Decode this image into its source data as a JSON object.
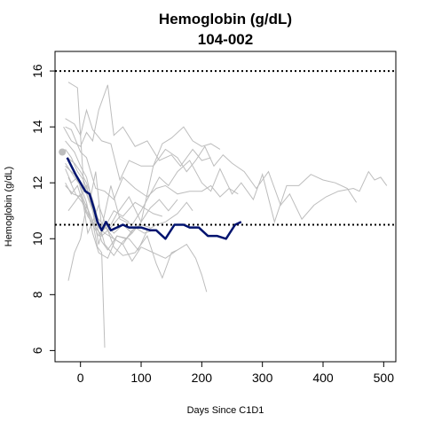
{
  "chart_data": {
    "type": "line",
    "title": "Hemoglobin (g/dL)",
    "subtitle": "104-002",
    "xlabel": "Days Since C1D1",
    "ylabel": "Hemoglobin (g/dL)",
    "xlim": [
      -42,
      520
    ],
    "ylim": [
      5.6,
      16.7
    ],
    "xticks": [
      0,
      100,
      200,
      300,
      400,
      500
    ],
    "yticks": [
      6,
      8,
      10,
      12,
      14,
      16
    ],
    "reference_lines": [
      16,
      10.5
    ],
    "colors": {
      "highlight": "#00136f",
      "background_series": "#bdbdbd",
      "baseline_point": "#bdbdbd",
      "reference": "#000000"
    },
    "baseline_point": {
      "x": -30,
      "y": 13.1
    },
    "highlight_series": {
      "name": "104-002",
      "points": [
        [
          -22,
          12.9
        ],
        [
          -15,
          12.6
        ],
        [
          -8,
          12.3
        ],
        [
          0,
          12.0
        ],
        [
          8,
          11.7
        ],
        [
          15,
          11.6
        ],
        [
          22,
          11.1
        ],
        [
          28,
          10.6
        ],
        [
          35,
          10.3
        ],
        [
          42,
          10.6
        ],
        [
          50,
          10.3
        ],
        [
          60,
          10.4
        ],
        [
          70,
          10.5
        ],
        [
          80,
          10.4
        ],
        [
          100,
          10.4
        ],
        [
          115,
          10.3
        ],
        [
          125,
          10.3
        ],
        [
          140,
          10.0
        ],
        [
          155,
          10.5
        ],
        [
          170,
          10.5
        ],
        [
          180,
          10.4
        ],
        [
          195,
          10.4
        ],
        [
          210,
          10.1
        ],
        [
          225,
          10.1
        ],
        [
          240,
          10.0
        ],
        [
          255,
          10.5
        ],
        [
          265,
          10.6
        ]
      ]
    },
    "background_series": [
      {
        "points": [
          [
            -25,
            12.7
          ],
          [
            -10,
            12.2
          ],
          [
            0,
            11.9
          ],
          [
            10,
            11.6
          ],
          [
            20,
            11.0
          ],
          [
            30,
            10.7
          ],
          [
            45,
            10.3
          ],
          [
            60,
            10.9
          ],
          [
            80,
            11.5
          ],
          [
            100,
            10.6
          ],
          [
            120,
            12.6
          ],
          [
            140,
            13.2
          ],
          [
            160,
            12.9
          ],
          [
            175,
            12.4
          ],
          [
            190,
            12.8
          ],
          [
            205,
            13.3
          ],
          [
            220,
            12.6
          ],
          [
            235,
            13.0
          ],
          [
            250,
            12.7
          ],
          [
            270,
            12.4
          ],
          [
            290,
            11.8
          ],
          [
            310,
            12.4
          ],
          [
            330,
            11.2
          ],
          [
            345,
            11.6
          ],
          [
            365,
            10.7
          ],
          [
            385,
            11.2
          ],
          [
            405,
            11.5
          ],
          [
            425,
            11.7
          ],
          [
            450,
            11.8
          ],
          [
            460,
            11.7
          ],
          [
            475,
            12.4
          ],
          [
            485,
            12.1
          ],
          [
            495,
            12.2
          ],
          [
            505,
            11.9
          ]
        ]
      },
      {
        "points": [
          [
            -20,
            15.6
          ],
          [
            -5,
            15.4
          ],
          [
            5,
            12.0
          ],
          [
            15,
            11.3
          ],
          [
            25,
            12.4
          ],
          [
            35,
            10.4
          ],
          [
            50,
            11.9
          ],
          [
            65,
            10.7
          ],
          [
            85,
            10.5
          ],
          [
            100,
            11.0
          ],
          [
            115,
            11.6
          ],
          [
            130,
            12.2
          ],
          [
            145,
            11.9
          ],
          [
            160,
            12.4
          ],
          [
            180,
            12.8
          ],
          [
            200,
            12.0
          ],
          [
            215,
            11.7
          ],
          [
            230,
            12.5
          ],
          [
            250,
            11.6
          ],
          [
            265,
            12.0
          ],
          [
            285,
            11.4
          ],
          [
            300,
            12.3
          ],
          [
            320,
            10.6
          ],
          [
            340,
            11.9
          ],
          [
            360,
            11.9
          ],
          [
            380,
            12.3
          ],
          [
            400,
            12.1
          ],
          [
            420,
            12.0
          ],
          [
            440,
            11.8
          ],
          [
            455,
            11.3
          ]
        ]
      },
      {
        "points": [
          [
            -28,
            14.0
          ],
          [
            -15,
            13.5
          ],
          [
            0,
            13.3
          ],
          [
            10,
            13.8
          ],
          [
            20,
            13.5
          ],
          [
            30,
            14.6
          ],
          [
            45,
            15.5
          ],
          [
            55,
            13.7
          ],
          [
            70,
            14.0
          ],
          [
            90,
            13.3
          ],
          [
            110,
            13.5
          ],
          [
            130,
            12.8
          ],
          [
            150,
            13.0
          ],
          [
            165,
            12.6
          ],
          [
            185,
            13.2
          ],
          [
            200,
            12.8
          ],
          [
            215,
            12.9
          ]
        ]
      },
      {
        "points": [
          [
            -25,
            14.3
          ],
          [
            -10,
            14.1
          ],
          [
            0,
            13.7
          ],
          [
            10,
            14.6
          ],
          [
            20,
            13.9
          ],
          [
            35,
            13.5
          ],
          [
            50,
            13.4
          ],
          [
            65,
            12.1
          ],
          [
            80,
            12.8
          ],
          [
            100,
            12.6
          ],
          [
            120,
            12.6
          ],
          [
            135,
            13.4
          ],
          [
            150,
            13.6
          ],
          [
            170,
            14.0
          ],
          [
            185,
            13.5
          ],
          [
            200,
            13.3
          ],
          [
            215,
            13.4
          ],
          [
            230,
            13.2
          ]
        ]
      },
      {
        "points": [
          [
            -25,
            14.0
          ],
          [
            -15,
            13.9
          ],
          [
            0,
            13.1
          ],
          [
            10,
            12.9
          ],
          [
            25,
            11.8
          ],
          [
            40,
            11.7
          ],
          [
            55,
            11.4
          ],
          [
            70,
            12.2
          ],
          [
            90,
            11.8
          ],
          [
            110,
            11.5
          ],
          [
            125,
            11.8
          ],
          [
            140,
            11.9
          ],
          [
            160,
            11.6
          ],
          [
            180,
            11.7
          ],
          [
            200,
            11.7
          ],
          [
            215,
            11.9
          ],
          [
            230,
            11.5
          ],
          [
            245,
            11.8
          ],
          [
            260,
            11.6
          ]
        ]
      },
      {
        "points": [
          [
            -25,
            13.5
          ],
          [
            -10,
            13.1
          ],
          [
            0,
            12.6
          ],
          [
            10,
            12.2
          ],
          [
            20,
            11.3
          ],
          [
            30,
            10.4
          ],
          [
            40,
            10.2
          ],
          [
            55,
            10.0
          ],
          [
            70,
            9.8
          ],
          [
            85,
            9.2
          ],
          [
            100,
            9.7
          ],
          [
            120,
            9.5
          ],
          [
            140,
            9.3
          ],
          [
            160,
            9.6
          ],
          [
            175,
            9.8
          ],
          [
            190,
            9.3
          ],
          [
            200,
            8.7
          ],
          [
            208,
            8.1
          ]
        ]
      },
      {
        "points": [
          [
            -20,
            8.5
          ],
          [
            -10,
            9.5
          ],
          [
            0,
            10.0
          ],
          [
            10,
            11.2
          ],
          [
            20,
            10.6
          ],
          [
            30,
            11.2
          ],
          [
            40,
            10.6
          ],
          [
            55,
            9.7
          ],
          [
            70,
            9.4
          ],
          [
            90,
            9.5
          ],
          [
            110,
            10.1
          ],
          [
            125,
            9.1
          ],
          [
            135,
            8.6
          ],
          [
            150,
            9.5
          ],
          [
            160,
            9.6
          ]
        ]
      },
      {
        "points": [
          [
            -25,
            12.0
          ],
          [
            -15,
            11.6
          ],
          [
            -5,
            11.9
          ],
          [
            5,
            11.2
          ],
          [
            12,
            10.2
          ],
          [
            20,
            10.6
          ],
          [
            28,
            9.7
          ],
          [
            35,
            9.5
          ],
          [
            38,
            7.4
          ],
          [
            40,
            6.1
          ]
        ]
      },
      {
        "points": [
          [
            -25,
            12.6
          ],
          [
            -10,
            12.3
          ],
          [
            0,
            11.9
          ],
          [
            10,
            11.3
          ],
          [
            20,
            10.2
          ],
          [
            30,
            9.5
          ],
          [
            45,
            9.3
          ],
          [
            60,
            10.1
          ],
          [
            80,
            10.0
          ],
          [
            95,
            9.6
          ],
          [
            110,
            10.3
          ],
          [
            125,
            10.5
          ],
          [
            140,
            10.6
          ],
          [
            160,
            10.9
          ],
          [
            175,
            11.3
          ],
          [
            185,
            11.0
          ]
        ]
      },
      {
        "points": [
          [
            -22,
            12.9
          ],
          [
            -10,
            12.7
          ],
          [
            0,
            12.4
          ],
          [
            10,
            12.0
          ],
          [
            20,
            11.4
          ],
          [
            30,
            10.6
          ],
          [
            40,
            9.8
          ],
          [
            55,
            9.4
          ],
          [
            70,
            9.9
          ],
          [
            85,
            10.2
          ],
          [
            100,
            10.6
          ],
          [
            115,
            11.1
          ],
          [
            130,
            11.4
          ],
          [
            145,
            11.0
          ],
          [
            160,
            11.4
          ]
        ]
      },
      {
        "points": [
          [
            -20,
            11.0
          ],
          [
            -10,
            11.3
          ],
          [
            0,
            11.6
          ],
          [
            10,
            11.0
          ],
          [
            20,
            10.5
          ],
          [
            30,
            10.1
          ],
          [
            40,
            10.4
          ],
          [
            55,
            11.0
          ],
          [
            70,
            10.8
          ],
          [
            90,
            11.3
          ],
          [
            105,
            11.1
          ],
          [
            120,
            10.9
          ],
          [
            135,
            10.8
          ]
        ]
      },
      {
        "points": [
          [
            -25,
            13.2
          ],
          [
            -15,
            12.9
          ],
          [
            -5,
            12.4
          ],
          [
            5,
            12.1
          ],
          [
            15,
            11.5
          ],
          [
            25,
            10.6
          ],
          [
            35,
            9.9
          ],
          [
            45,
            9.6
          ],
          [
            60,
            10.1
          ],
          [
            75,
            10.0
          ],
          [
            90,
            10.4
          ],
          [
            105,
            10.2
          ],
          [
            120,
            10.3
          ]
        ]
      },
      {
        "points": [
          [
            -25,
            11.9
          ],
          [
            -12,
            11.6
          ],
          [
            0,
            11.5
          ],
          [
            10,
            11.9
          ],
          [
            20,
            11.0
          ],
          [
            30,
            9.8
          ],
          [
            40,
            10.6
          ],
          [
            55,
            10.2
          ],
          [
            70,
            10.5
          ],
          [
            85,
            10.2
          ]
        ]
      },
      {
        "points": [
          [
            -20,
            12.2
          ],
          [
            -8,
            11.6
          ],
          [
            3,
            11.3
          ],
          [
            12,
            10.8
          ],
          [
            22,
            10.5
          ],
          [
            32,
            10.2
          ],
          [
            42,
            10.4
          ],
          [
            55,
            10.0
          ],
          [
            70,
            9.8
          ],
          [
            85,
            10.3
          ],
          [
            100,
            10.5
          ],
          [
            115,
            10.4
          ]
        ]
      },
      {
        "points": [
          [
            -25,
            12.5
          ],
          [
            -15,
            12.0
          ],
          [
            -5,
            12.2
          ],
          [
            5,
            11.4
          ],
          [
            15,
            10.9
          ],
          [
            25,
            10.4
          ],
          [
            35,
            10.1
          ],
          [
            50,
            10.4
          ],
          [
            65,
            10.8
          ],
          [
            80,
            10.6
          ]
        ]
      }
    ]
  }
}
